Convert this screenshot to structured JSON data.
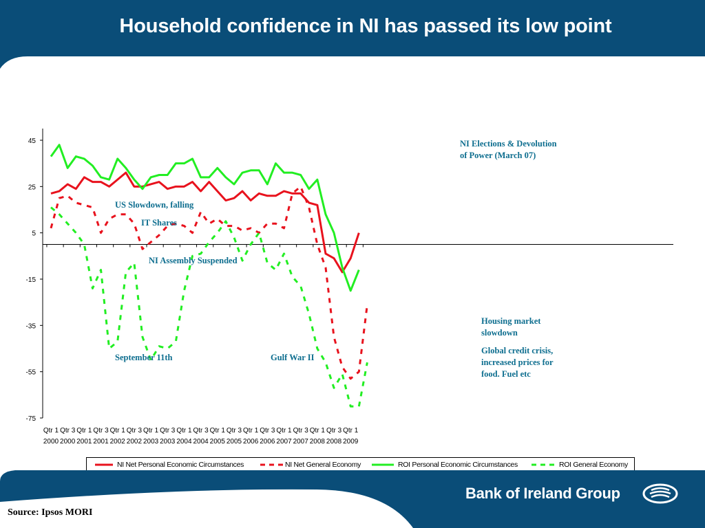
{
  "slide": {
    "title": "Household confidence in NI has passed its low point",
    "source": "Source: Ipsos MORI",
    "brand": "Bank of Ireland Group",
    "colors": {
      "navy": "#0a4d78",
      "accent": "#0e6e8f"
    }
  },
  "annotations": [
    {
      "id": "ni-elections",
      "lines": [
        "NI Elections & Devolution",
        "of Power (March 07)"
      ]
    },
    {
      "id": "us-slowdown",
      "lines": [
        "US Slowdown, falling"
      ]
    },
    {
      "id": "it-shares",
      "lines": [
        "IT Shares"
      ]
    },
    {
      "id": "assembly",
      "lines": [
        "NI Assembly Suspended"
      ]
    },
    {
      "id": "housing",
      "lines": [
        "Housing market",
        "slowdown"
      ]
    },
    {
      "id": "credit",
      "lines": [
        "Global credit crisis,",
        "increased prices for",
        "food. Fuel etc"
      ]
    },
    {
      "id": "sept11",
      "lines": [
        "September 11th"
      ]
    },
    {
      "id": "gulf",
      "lines": [
        "Gulf War II"
      ]
    }
  ],
  "chart_data": {
    "type": "line",
    "title": "",
    "xlabel": "",
    "ylabel": "",
    "ylim": [
      -75,
      45
    ],
    "yticks": [
      45,
      25,
      5,
      -15,
      -35,
      -55,
      -75
    ],
    "grid": false,
    "legend": "bottom",
    "x_tick_labels": [
      [
        "Qtr 1",
        "2000"
      ],
      [
        "Qtr 3",
        "2000"
      ],
      [
        "Qtr 1",
        "2001"
      ],
      [
        "Qtr 3",
        "2001"
      ],
      [
        "Qtr 1",
        "2002"
      ],
      [
        "Qtr 3",
        "2002"
      ],
      [
        "Qtr 1",
        "2003"
      ],
      [
        "Qtr 3",
        "2003"
      ],
      [
        "Qtr 1",
        "2004"
      ],
      [
        "Qtr 3",
        "2004"
      ],
      [
        "Qtr 1",
        "2005"
      ],
      [
        "Qtr 3",
        "2005"
      ],
      [
        "Qtr 1",
        "2006"
      ],
      [
        "Qtr 3",
        "2006"
      ],
      [
        "Qtr 1",
        "2007"
      ],
      [
        "Qtr 3",
        "2007"
      ],
      [
        "Qtr 1",
        "2008"
      ],
      [
        "Qtr 3",
        "2008"
      ],
      [
        "Qtr 1",
        "2009"
      ]
    ],
    "series": [
      {
        "name": "NI Net Personal Economic Circumstances",
        "color": "#e8121d",
        "dashed": false,
        "values": [
          22,
          23,
          26,
          24,
          29,
          27,
          27,
          25,
          28,
          31,
          25,
          25,
          26,
          27,
          24,
          25,
          25,
          27,
          23,
          27,
          23,
          19,
          20,
          23,
          19,
          22,
          21,
          21,
          23,
          22,
          22,
          18,
          17,
          -4,
          -6,
          -12,
          -6,
          5
        ]
      },
      {
        "name": "NI Net General Economy",
        "color": "#e8121d",
        "dashed": true,
        "values": [
          7,
          20,
          21,
          18,
          17,
          16,
          5,
          11,
          13,
          13,
          9,
          -2,
          1,
          4,
          8,
          9,
          8,
          5,
          14,
          9,
          11,
          8,
          8,
          6,
          7,
          5,
          9,
          9,
          7,
          22,
          25,
          16,
          0,
          -10,
          -40,
          -53,
          -58,
          -55,
          -26
        ]
      },
      {
        "name": "ROI Personal Economic Circumstances",
        "color": "#22ee22",
        "dashed": false,
        "values": [
          38,
          43,
          33,
          38,
          37,
          34,
          29,
          28,
          37,
          33,
          28,
          24,
          29,
          30,
          30,
          35,
          35,
          37,
          29,
          29,
          33,
          29,
          26,
          31,
          32,
          32,
          26,
          35,
          31,
          31,
          30,
          24,
          28,
          13,
          5,
          -10,
          -20,
          -11
        ]
      },
      {
        "name": "ROI General Economy",
        "color": "#22ee22",
        "dashed": true,
        "values": [
          16,
          13,
          9,
          5,
          0,
          -19,
          -11,
          -45,
          -42,
          -12,
          -8,
          -40,
          -50,
          -44,
          -45,
          -42,
          -20,
          -5,
          -4,
          1,
          5,
          10,
          3,
          -7,
          0,
          5,
          -8,
          -11,
          -4,
          -14,
          -18,
          -30,
          -45,
          -51,
          -62,
          -56,
          -70,
          -70,
          -51
        ]
      }
    ]
  }
}
